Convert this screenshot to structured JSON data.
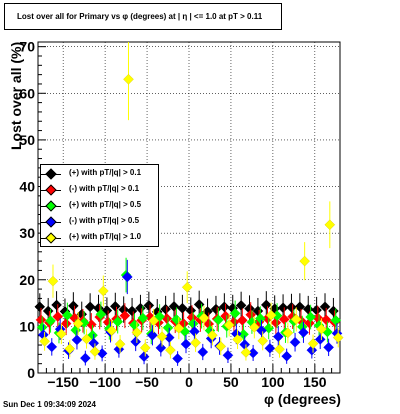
{
  "title": "Lost over all for Primary vs φ (degrees) at |  η  | <= 1.0 at pT > 0.11",
  "footer": "Sun Dec  1 09:34:09 2024",
  "chart_data": {
    "type": "scatter",
    "title": "Lost over all for Primary vs φ (degrees) at |  η  | <= 1.0 at pT > 0.11",
    "xlabel": "φ (degrees)",
    "ylabel": "Lost over all (%)",
    "xlim": [
      -180,
      180
    ],
    "ylim": [
      0,
      71
    ],
    "xticks": [
      -150,
      -100,
      -50,
      0,
      50,
      100,
      150
    ],
    "xtick_labels": [
      "−150",
      "−100",
      "−50",
      "0",
      "50",
      "100",
      "150"
    ],
    "yticks": [
      0,
      10,
      20,
      30,
      40,
      50,
      60,
      70
    ],
    "grid": true,
    "legend_position": "middle-left",
    "series": [
      {
        "name": "(+) with pT/|q| > 0.1",
        "color": "#000000",
        "x": [
          -175,
          -165,
          -155,
          -145,
          -135,
          -125,
          -115,
          -105,
          -95,
          -85,
          -75,
          -65,
          -55,
          -45,
          -35,
          -25,
          -15,
          -5,
          5,
          15,
          25,
          35,
          45,
          55,
          65,
          75,
          85,
          95,
          105,
          115,
          125,
          135,
          145,
          155,
          165,
          175
        ],
        "y": [
          14.2,
          13.3,
          14.6,
          13.2,
          14.4,
          12.6,
          14.2,
          13.9,
          13.4,
          14.3,
          13.6,
          13.3,
          13.9,
          14.5,
          13.1,
          13.7,
          14.3,
          13.9,
          13.4,
          14.7,
          13.2,
          13.7,
          14.2,
          13.9,
          14.5,
          13.8,
          13.3,
          14.6,
          13.8,
          14.0,
          14.1,
          14.2,
          13.7,
          13.5,
          14.2,
          13.3
        ]
      },
      {
        "name": "(-) with pT/|q| > 0.1",
        "color": "#ff0000",
        "x": [
          -175,
          -165,
          -155,
          -145,
          -135,
          -125,
          -115,
          -105,
          -95,
          -85,
          -75,
          -65,
          -55,
          -45,
          -35,
          -25,
          -15,
          -5,
          5,
          15,
          25,
          35,
          45,
          55,
          65,
          75,
          85,
          95,
          105,
          115,
          125,
          135,
          145,
          155,
          165,
          175
        ],
        "y": [
          11.4,
          10.8,
          12.1,
          10.6,
          11.8,
          11.2,
          10.4,
          12.0,
          10.9,
          11.6,
          12.3,
          10.7,
          11.3,
          12.0,
          10.8,
          11.7,
          11.1,
          10.6,
          11.9,
          11.4,
          10.5,
          11.6,
          12.2,
          10.9,
          11.3,
          12.5,
          11.0,
          11.7,
          10.8,
          11.5,
          12.1,
          11.2,
          10.7,
          11.8,
          11.4,
          10.9
        ]
      },
      {
        "name": "(+) with pT/|q| > 0.5",
        "color": "#00ff00",
        "x": [
          -175,
          -165,
          -155,
          -145,
          -135,
          -125,
          -115,
          -105,
          -95,
          -85,
          -75,
          -65,
          -55,
          -45,
          -35,
          -25,
          -15,
          -5,
          5,
          15,
          25,
          35,
          45,
          55,
          65,
          75,
          85,
          95,
          105,
          115,
          125,
          135,
          145,
          155,
          165,
          175
        ],
        "y": [
          9.8,
          11.2,
          8.6,
          12.4,
          9.2,
          10.8,
          8.1,
          12.6,
          9.5,
          11.0,
          21.0,
          10.3,
          11.8,
          8.4,
          12.1,
          9.7,
          11.5,
          8.9,
          10.6,
          12.2,
          9.1,
          11.4,
          10.0,
          12.8,
          8.3,
          10.9,
          11.7,
          9.6,
          12.3,
          8.7,
          11.1,
          9.9,
          12.0,
          10.2,
          8.8,
          11.3
        ]
      },
      {
        "name": "(-) with pT/|q| > 0.5",
        "color": "#0000ff",
        "x": [
          -175,
          -165,
          -155,
          -145,
          -135,
          -125,
          -115,
          -105,
          -95,
          -85,
          -75,
          -65,
          -55,
          -45,
          -35,
          -25,
          -15,
          -5,
          5,
          15,
          25,
          35,
          45,
          55,
          65,
          75,
          85,
          95,
          105,
          115,
          125,
          135,
          145,
          155,
          165,
          175
        ],
        "y": [
          8.2,
          5.6,
          9.4,
          4.8,
          7.1,
          3.2,
          6.4,
          4.2,
          8.8,
          5.1,
          20.6,
          6.7,
          3.5,
          8.1,
          5.4,
          7.6,
          3.1,
          6.2,
          8.9,
          4.5,
          7.4,
          5.8,
          3.8,
          8.4,
          6.1,
          4.3,
          9.1,
          5.3,
          7.8,
          3.6,
          6.6,
          8.7,
          4.9,
          7.2,
          5.5,
          8.5
        ]
      },
      {
        "name": "(+) with pT/|q| > 1.0",
        "color": "#ffff00",
        "x": [
          -175,
          -165,
          -155,
          -145,
          -135,
          -125,
          -115,
          -105,
          -95,
          -85,
          -75,
          -65,
          -55,
          -45,
          -35,
          -25,
          -15,
          -5,
          5,
          15,
          25,
          35,
          45,
          55,
          65,
          75,
          85,
          95,
          105,
          115,
          125,
          135,
          145,
          155,
          165,
          175
        ],
        "y": [
          6.8,
          19.7,
          8.4,
          5.2,
          10.6,
          7.3,
          4.6,
          17.6,
          9.1,
          6.2,
          63.0,
          8.7,
          5.4,
          11.2,
          7.8,
          4.9,
          9.6,
          18.4,
          6.5,
          11.8,
          8.1,
          5.7,
          10.3,
          7.2,
          4.4,
          9.8,
          6.9,
          12.4,
          5.1,
          8.6,
          11.5,
          24.0,
          6.3,
          9.4,
          31.8,
          7.6
        ]
      }
    ]
  }
}
